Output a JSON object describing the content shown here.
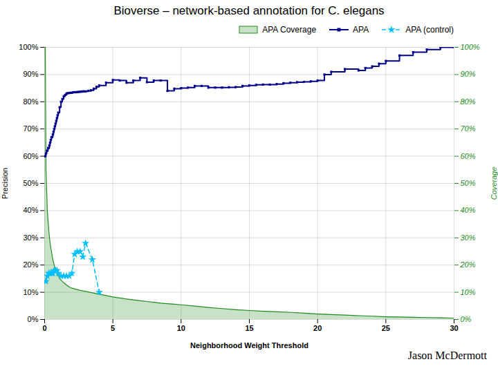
{
  "chart_data": {
    "type": "line",
    "title": "Bioverse – network-based annotation for C. elegans",
    "xlabel": "Neighborhood Weight Threshold",
    "ylabel": "Precision",
    "y2label": "Coverage",
    "annotations": [
      "Jason McDermott"
    ],
    "xlim": [
      0,
      30
    ],
    "xticks": [
      0,
      5,
      10,
      15,
      20,
      25,
      30
    ],
    "ylim": [
      0,
      1.0
    ],
    "yticks": [
      {
        "value": 0,
        "label": "0%"
      },
      {
        "value": 0.1,
        "label": "10%"
      },
      {
        "value": 0.2,
        "label": "20%"
      },
      {
        "value": 0.3,
        "label": "30%"
      },
      {
        "value": 0.4,
        "label": "40%"
      },
      {
        "value": 0.5,
        "label": "50%"
      },
      {
        "value": 0.6,
        "label": "60%"
      },
      {
        "value": 0.7,
        "label": "70%"
      },
      {
        "value": 0.8,
        "label": "80%"
      },
      {
        "value": 0.9,
        "label": "90%"
      },
      {
        "value": 1.0,
        "label": "100%"
      }
    ],
    "y2lim": [
      0,
      1.0
    ],
    "y2ticks": [
      {
        "value": 0,
        "label": "0%"
      },
      {
        "value": 0.1,
        "label": "10%"
      },
      {
        "value": 0.2,
        "label": "20%"
      },
      {
        "value": 0.3,
        "label": "30%"
      },
      {
        "value": 0.4,
        "label": "40%"
      },
      {
        "value": 0.5,
        "label": "50%"
      },
      {
        "value": 0.6,
        "label": "60%"
      },
      {
        "value": 0.7,
        "label": "70%"
      },
      {
        "value": 0.8,
        "label": "80%"
      },
      {
        "value": 0.9,
        "label": "90%"
      },
      {
        "value": 1.0,
        "label": "100%"
      }
    ],
    "grid": true,
    "legend": "upper right",
    "series": [
      {
        "name": "APA Coverage",
        "type": "area",
        "color": "#228B22",
        "x": [
          0.0,
          0.05,
          0.1,
          0.2,
          0.3,
          0.4,
          0.5,
          0.6,
          0.7,
          0.8,
          0.9,
          1.0,
          1.2,
          1.4,
          1.6,
          1.8,
          2.0,
          2.5,
          3.0,
          3.5,
          4.0,
          4.5,
          5.0,
          5.5,
          6.0,
          6.5,
          7.0,
          7.5,
          8.0,
          8.5,
          9.0,
          9.5,
          10.0,
          11.0,
          12.0,
          13.0,
          14.0,
          15.0,
          16.0,
          17.0,
          18.0,
          19.0,
          20.0,
          21.0,
          22.0,
          23.0,
          24.0,
          25.0,
          26.0,
          27.0,
          28.0,
          29.0,
          30.0
        ],
        "values": [
          1.0,
          1.0,
          0.55,
          0.4,
          0.33,
          0.28,
          0.25,
          0.22,
          0.2,
          0.18,
          0.17,
          0.16,
          0.145,
          0.135,
          0.127,
          0.12,
          0.115,
          0.108,
          0.103,
          0.098,
          0.093,
          0.088,
          0.083,
          0.079,
          0.075,
          0.072,
          0.069,
          0.066,
          0.063,
          0.06,
          0.058,
          0.056,
          0.054,
          0.049,
          0.044,
          0.04,
          0.036,
          0.033,
          0.03,
          0.028,
          0.026,
          0.023,
          0.02,
          0.018,
          0.016,
          0.014,
          0.012,
          0.01,
          0.009,
          0.008,
          0.007,
          0.006,
          0.005
        ]
      },
      {
        "name": "APA",
        "type": "step",
        "color": "#00008B",
        "marker": "square",
        "line_style": "solid",
        "x": [
          0.0,
          0.05,
          0.1,
          0.15,
          0.2,
          0.25,
          0.3,
          0.35,
          0.4,
          0.45,
          0.5,
          0.55,
          0.6,
          0.65,
          0.7,
          0.75,
          0.8,
          0.85,
          0.9,
          0.95,
          1.0,
          1.1,
          1.2,
          1.3,
          1.4,
          1.5,
          1.6,
          1.7,
          1.8,
          1.9,
          2.0,
          2.1,
          2.2,
          2.3,
          2.4,
          2.5,
          2.6,
          2.7,
          2.8,
          2.9,
          3.0,
          3.2,
          3.4,
          3.6,
          3.8,
          4.0,
          4.5,
          5.0,
          5.5,
          6.0,
          6.5,
          7.0,
          7.5,
          8.0,
          8.5,
          9.0,
          9.5,
          10.0,
          10.5,
          11.0,
          11.5,
          12.0,
          12.5,
          13.0,
          13.5,
          14.0,
          14.5,
          15.0,
          15.5,
          16.0,
          16.5,
          17.0,
          17.5,
          18.0,
          18.5,
          19.0,
          19.5,
          20.0,
          20.5,
          21.0,
          22.0,
          23.0,
          23.5,
          24.0,
          24.5,
          25.0,
          26.0,
          27.0,
          28.0,
          29.0,
          30.0
        ],
        "values": [
          0.6,
          0.6,
          0.61,
          0.62,
          0.62,
          0.63,
          0.63,
          0.64,
          0.65,
          0.66,
          0.67,
          0.67,
          0.68,
          0.69,
          0.7,
          0.71,
          0.72,
          0.73,
          0.74,
          0.75,
          0.76,
          0.78,
          0.8,
          0.81,
          0.82,
          0.825,
          0.83,
          0.832,
          0.832,
          0.833,
          0.833,
          0.835,
          0.835,
          0.835,
          0.836,
          0.836,
          0.837,
          0.837,
          0.838,
          0.838,
          0.838,
          0.84,
          0.842,
          0.848,
          0.855,
          0.86,
          0.87,
          0.88,
          0.878,
          0.87,
          0.878,
          0.888,
          0.872,
          0.878,
          0.878,
          0.84,
          0.848,
          0.85,
          0.852,
          0.858,
          0.858,
          0.852,
          0.852,
          0.852,
          0.853,
          0.854,
          0.858,
          0.86,
          0.862,
          0.863,
          0.863,
          0.865,
          0.868,
          0.87,
          0.872,
          0.873,
          0.875,
          0.878,
          0.9,
          0.91,
          0.92,
          0.915,
          0.924,
          0.93,
          0.94,
          0.95,
          0.97,
          0.982,
          0.992,
          1.0,
          1.0
        ]
      },
      {
        "name": "APA (control)",
        "type": "line",
        "color": "#00BFFF",
        "marker": "star",
        "line_style": "dashed",
        "x": [
          0.1,
          0.2,
          0.3,
          0.4,
          0.5,
          0.6,
          0.7,
          0.8,
          0.9,
          1.0,
          1.2,
          1.4,
          1.6,
          1.8,
          2.0,
          2.2,
          2.4,
          2.6,
          2.8,
          3.0,
          3.5,
          4.0
        ],
        "values": [
          0.14,
          0.16,
          0.17,
          0.17,
          0.17,
          0.17,
          0.18,
          0.18,
          0.18,
          0.17,
          0.16,
          0.16,
          0.16,
          0.16,
          0.17,
          0.24,
          0.25,
          0.25,
          0.23,
          0.28,
          0.22,
          0.1
        ]
      }
    ]
  }
}
